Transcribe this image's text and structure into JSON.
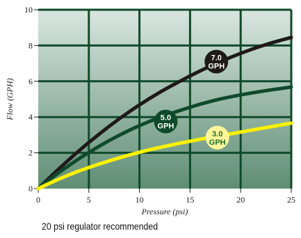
{
  "chart_data": {
    "type": "line",
    "xlabel": "Pressure (psi)",
    "ylabel": "Flow (GPH)",
    "xlim": [
      0,
      25
    ],
    "ylim": [
      0,
      10
    ],
    "x_ticks": [
      "0",
      "5",
      "10",
      "15",
      "20",
      "25"
    ],
    "y_ticks": [
      "0",
      "2",
      "4",
      "6",
      "8",
      "10"
    ],
    "grid": true,
    "series": [
      {
        "name": "7.0 GPH",
        "color": "#1f1a1a",
        "badge_fill": "#1f1a1a",
        "badge_text_color": "#ffffff",
        "badge_lines": [
          "7.0",
          "GPH"
        ],
        "label_x": 17.6,
        "label_y": 7.1,
        "x": [
          0,
          1,
          2,
          3,
          4,
          5,
          6,
          7,
          8,
          9,
          10,
          11,
          12,
          13,
          14,
          15,
          16,
          17,
          18,
          19,
          20,
          21,
          22,
          23,
          24,
          25
        ],
        "y": [
          0,
          0.55,
          1.08,
          1.6,
          2.1,
          2.58,
          3.04,
          3.48,
          3.9,
          4.3,
          4.68,
          5.04,
          5.38,
          5.7,
          6.0,
          6.3,
          6.58,
          6.85,
          7.1,
          7.34,
          7.56,
          7.77,
          7.96,
          8.14,
          8.3,
          8.45
        ]
      },
      {
        "name": "5.0 GPH",
        "color": "#0f4a2a",
        "badge_fill": "#0f4a2a",
        "badge_text_color": "#ffffff",
        "badge_lines": [
          "5.0",
          "GPH"
        ],
        "label_x": 12.6,
        "label_y": 3.75,
        "x": [
          0,
          1,
          2,
          3,
          4,
          5,
          6,
          7,
          8,
          9,
          10,
          11,
          12,
          13,
          14,
          15,
          16,
          17,
          18,
          19,
          20,
          21,
          22,
          23,
          24,
          25
        ],
        "y": [
          0,
          0.45,
          0.88,
          1.28,
          1.66,
          2.02,
          2.36,
          2.68,
          2.98,
          3.26,
          3.52,
          3.76,
          3.98,
          4.18,
          4.37,
          4.55,
          4.72,
          4.87,
          5.01,
          5.13,
          5.24,
          5.34,
          5.43,
          5.52,
          5.6,
          5.68
        ]
      },
      {
        "name": "3.0 GPH",
        "color": "#fff200",
        "badge_fill": "#fff79a",
        "badge_text_color": "#1a6e2e",
        "badge_lines": [
          "3.0",
          "GPH"
        ],
        "label_x": 17.7,
        "label_y": 2.85,
        "x": [
          0,
          1,
          2,
          3,
          4,
          5,
          6,
          7,
          8,
          9,
          10,
          11,
          12,
          13,
          14,
          15,
          16,
          17,
          18,
          19,
          20,
          21,
          22,
          23,
          24,
          25
        ],
        "y": [
          0,
          0.27,
          0.52,
          0.76,
          0.98,
          1.18,
          1.37,
          1.55,
          1.72,
          1.88,
          2.03,
          2.17,
          2.3,
          2.42,
          2.54,
          2.65,
          2.76,
          2.86,
          2.96,
          3.06,
          3.16,
          3.26,
          3.36,
          3.46,
          3.56,
          3.66
        ]
      }
    ]
  },
  "colors": {
    "plot_top": "#d9e6e0",
    "plot_bottom": "#5f8e74",
    "grid": "#0f4a2a"
  },
  "caption": "20 psi regulator recommended"
}
